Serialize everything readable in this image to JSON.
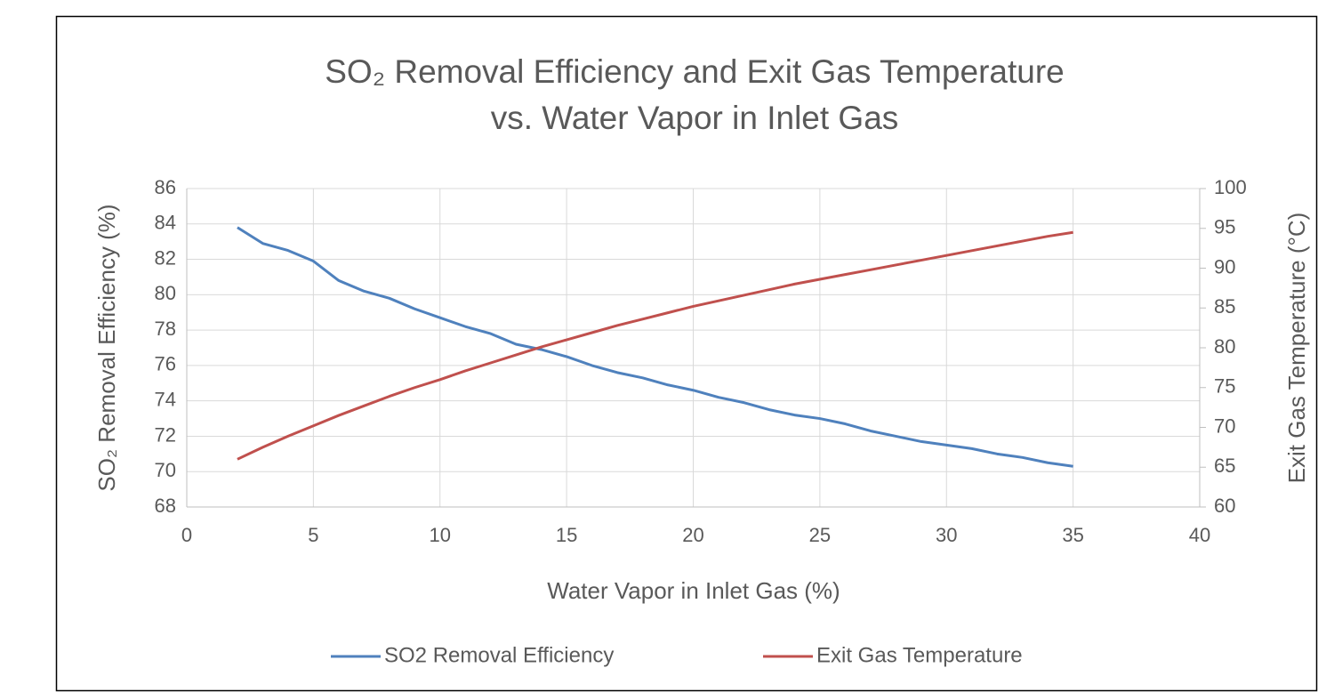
{
  "chart_data": {
    "type": "line",
    "title": "SO₂ Removal Efficiency and Exit Gas Temperature vs. Water Vapor in Inlet Gas",
    "x_label": "Water Vapor in Inlet Gas (%)",
    "y_label": "SO₂ Removal Efficiency (%)",
    "y2_label": "Exit Gas Temperature (°C)",
    "x": [
      2,
      3,
      4,
      5,
      6,
      7,
      8,
      9,
      10,
      11,
      12,
      13,
      14,
      15,
      16,
      17,
      18,
      19,
      20,
      21,
      22,
      23,
      24,
      25,
      26,
      27,
      28,
      29,
      30,
      31,
      32,
      33,
      34,
      35
    ],
    "series": [
      {
        "name": "SO2 Removal Efficiency",
        "color": "#4f81bd",
        "values": [
          83.8,
          82.9,
          82.5,
          81.9,
          80.8,
          80.2,
          79.8,
          79.2,
          78.7,
          78.2,
          77.8,
          77.2,
          76.9,
          76.5,
          76.0,
          75.6,
          75.3,
          74.9,
          74.6,
          74.2,
          73.9,
          73.5,
          73.2,
          73.0,
          72.7,
          72.3,
          72.0,
          71.7,
          71.5,
          71.3,
          71.0,
          70.8,
          70.5,
          70.3
        ]
      },
      {
        "name": "Exit Gas Temperature",
        "color": "#c0504d",
        "axis": "y2",
        "values": [
          66.0,
          67.5,
          68.9,
          70.2,
          71.5,
          72.7,
          73.9,
          75.0,
          76.0,
          77.1,
          78.1,
          79.1,
          80.1,
          81.0,
          81.9,
          82.8,
          83.6,
          84.4,
          85.2,
          85.9,
          86.6,
          87.3,
          88.0,
          88.6,
          89.2,
          89.8,
          90.4,
          91.0,
          91.6,
          92.2,
          92.8,
          93.4,
          94.0,
          94.5
        ]
      }
    ],
    "xlim": [
      0,
      40
    ],
    "xticks": [
      0,
      5,
      10,
      15,
      20,
      25,
      30,
      35,
      40
    ],
    "ylim": [
      68,
      86
    ],
    "yticks": [
      68,
      70,
      72,
      74,
      76,
      78,
      80,
      82,
      84,
      86
    ],
    "y2lim": [
      60,
      100
    ],
    "y2ticks": [
      60,
      65,
      70,
      75,
      80,
      85,
      90,
      95,
      100
    ],
    "grid": true,
    "legend": "bottom"
  }
}
